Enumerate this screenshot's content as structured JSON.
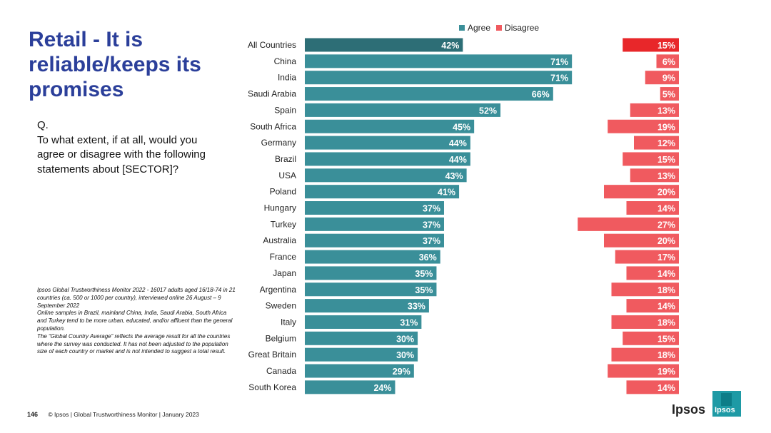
{
  "title": "Retail - It is\nreliable/keeps its\npromises",
  "question": "Q.\nTo what extent, if at all, would you agree or disagree with the following statements about [SECTOR]?",
  "notes": [
    "Ipsos Global Trustworthiness Monitor 2022 - 16017 adults aged 16/18-74 in 21 countries (ca. 500 or 1000 per country), interviewed online 26 August – 9 September 2022",
    "Online samples in Brazil, mainland China, India, Saudi Arabia, South Africa and Turkey tend to be more urban, educated, and/or affluent than the general population.",
    "The “Global Country Average” reflects the average result for all the countries where the survey was conducted. It has not been adjusted to the population size of each country or market and is not intended to suggest a total result."
  ],
  "footer": {
    "page": "146",
    "text": "© Ipsos | Global Trustworthiness Monitor | January 2023"
  },
  "logo": {
    "word": "Ipsos",
    "box_label": "Ipsos"
  },
  "colors": {
    "agree": "#3a8f99",
    "agree_highlight": "#2d6e76",
    "disagree": "#f05a5f",
    "disagree_highlight": "#e8272a"
  },
  "chart_data": {
    "type": "bar",
    "orientation": "horizontal",
    "legend": [
      "Agree",
      "Disagree"
    ],
    "legend_position": "top",
    "categories": [
      "All Countries",
      "China",
      "India",
      "Saudi Arabia",
      "Spain",
      "South Africa",
      "Germany",
      "Brazil",
      "USA",
      "Poland",
      "Hungary",
      "Turkey",
      "Australia",
      "France",
      "Japan",
      "Argentina",
      "Sweden",
      "Italy",
      "Belgium",
      "Great Britain",
      "Canada",
      "South Korea"
    ],
    "series": [
      {
        "name": "Agree",
        "values": [
          42,
          71,
          71,
          66,
          52,
          45,
          44,
          44,
          43,
          41,
          37,
          37,
          37,
          36,
          35,
          35,
          33,
          31,
          30,
          30,
          29,
          24
        ]
      },
      {
        "name": "Disagree",
        "values": [
          15,
          6,
          9,
          5,
          13,
          19,
          12,
          15,
          13,
          20,
          14,
          27,
          20,
          17,
          14,
          18,
          14,
          18,
          15,
          18,
          19,
          14
        ]
      }
    ],
    "value_suffix": "%",
    "highlight_category": "All Countries"
  }
}
